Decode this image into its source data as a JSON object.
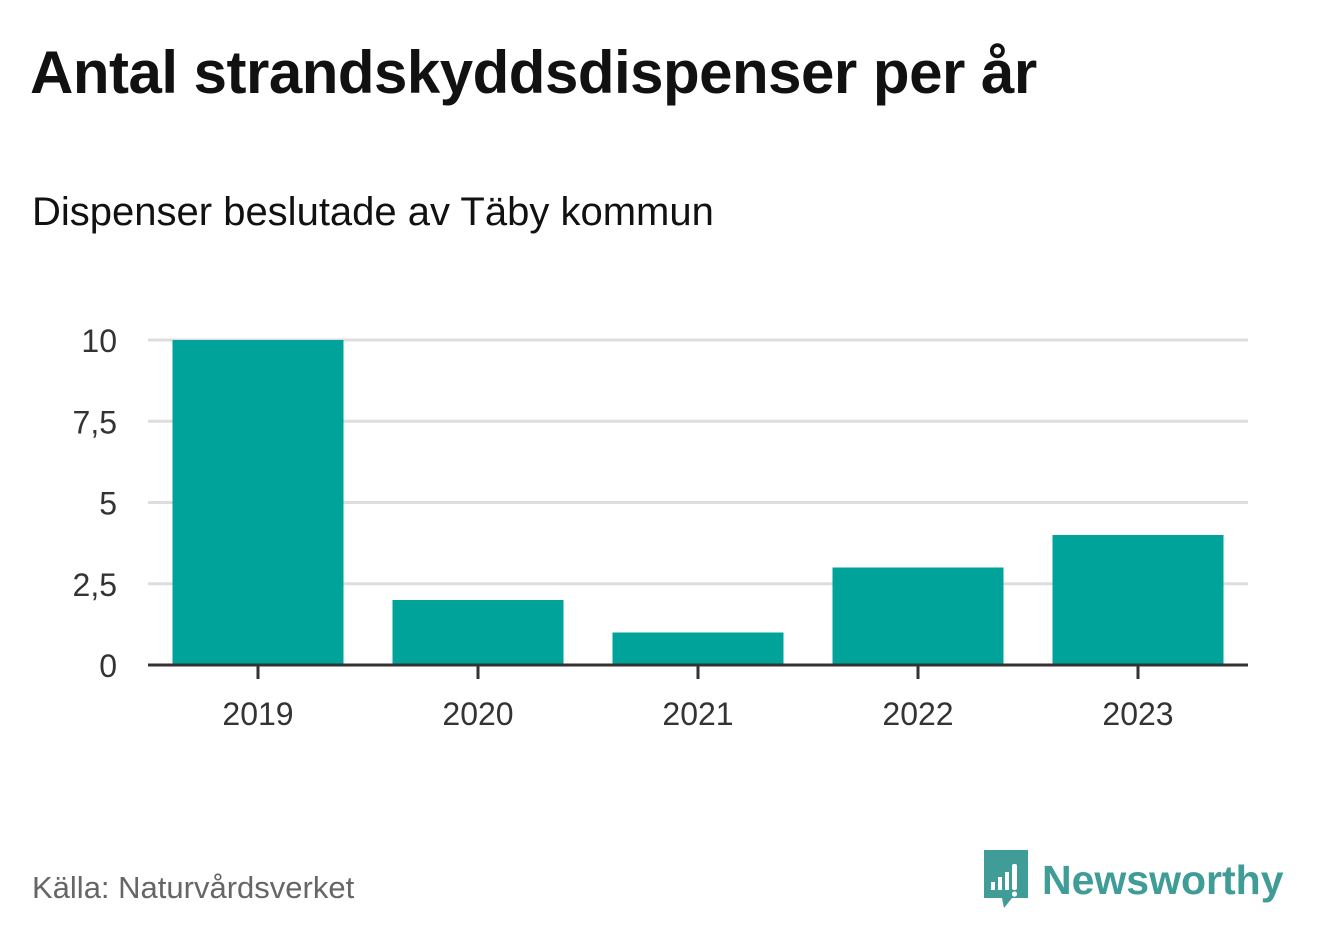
{
  "chart_data": {
    "type": "bar",
    "title": "Antal strandskyddsdispenser per år",
    "subtitle": "Dispenser beslutade av Täby kommun",
    "categories": [
      "2019",
      "2020",
      "2021",
      "2022",
      "2023"
    ],
    "values": [
      10,
      2,
      1,
      3,
      4
    ],
    "ylim": [
      0,
      10
    ],
    "yticks": [
      0,
      2.5,
      5,
      7.5,
      10
    ],
    "ytick_labels": [
      "0",
      "2,5",
      "5",
      "7,5",
      "10"
    ],
    "xlabel": "",
    "ylabel": "",
    "grid": true,
    "bar_color": "#00a39a"
  },
  "footer": {
    "source": "Källa: Naturvårdsverket",
    "brand": "Newsworthy",
    "brand_icon": "newsworthy-logo-icon",
    "brand_color": "#3f9c96"
  }
}
